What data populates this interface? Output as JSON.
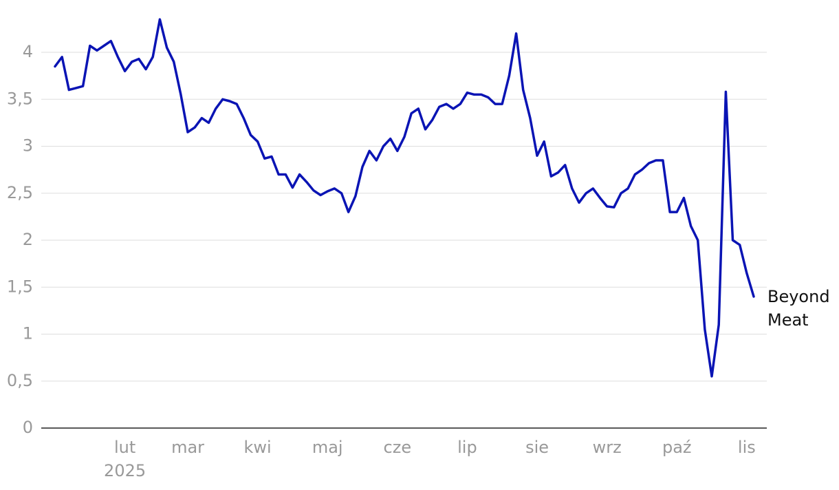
{
  "chart_data": {
    "type": "line",
    "categories": [
      null,
      null,
      null,
      null,
      null,
      null,
      null,
      null,
      null,
      null,
      "lut",
      null,
      null,
      null,
      null,
      null,
      null,
      null,
      null,
      "mar",
      null,
      null,
      null,
      null,
      null,
      null,
      null,
      null,
      null,
      "kwi",
      null,
      null,
      null,
      null,
      null,
      null,
      null,
      null,
      null,
      "maj",
      null,
      null,
      null,
      null,
      null,
      null,
      null,
      null,
      null,
      "cze",
      null,
      null,
      null,
      null,
      null,
      null,
      null,
      null,
      null,
      "lip",
      null,
      null,
      null,
      null,
      null,
      null,
      null,
      null,
      null,
      "sie",
      null,
      null,
      null,
      null,
      null,
      null,
      null,
      null,
      null,
      "wrz",
      null,
      null,
      null,
      null,
      null,
      null,
      null,
      null,
      null,
      "paź",
      null,
      null,
      null,
      null,
      null,
      null,
      null,
      null,
      null,
      "lis",
      null
    ],
    "year_label": "2025",
    "series": [
      {
        "name": "Beyond Meat",
        "color": "#0a14b4",
        "values": [
          3.85,
          3.95,
          3.6,
          3.62,
          3.64,
          4.07,
          4.02,
          4.07,
          4.12,
          3.95,
          3.8,
          3.9,
          3.93,
          3.82,
          3.95,
          4.35,
          4.05,
          3.9,
          3.55,
          3.15,
          3.2,
          3.3,
          3.25,
          3.4,
          3.5,
          3.48,
          3.45,
          3.3,
          3.12,
          3.05,
          2.87,
          2.89,
          2.7,
          2.7,
          2.56,
          2.7,
          2.62,
          2.53,
          2.48,
          2.52,
          2.55,
          2.5,
          2.3,
          2.47,
          2.78,
          2.95,
          2.85,
          3.0,
          3.08,
          2.95,
          3.1,
          3.35,
          3.4,
          3.18,
          3.28,
          3.42,
          3.45,
          3.4,
          3.45,
          3.57,
          3.55,
          3.55,
          3.52,
          3.45,
          3.45,
          3.75,
          4.2,
          3.6,
          3.3,
          2.9,
          3.05,
          2.68,
          2.72,
          2.8,
          2.55,
          2.4,
          2.5,
          2.55,
          2.45,
          2.36,
          2.35,
          2.5,
          2.55,
          2.7,
          2.75,
          2.82,
          2.85,
          2.85,
          2.3,
          2.3,
          2.45,
          2.15,
          2.0,
          1.05,
          0.55,
          1.1,
          3.58,
          2.0,
          1.95,
          1.65,
          1.4
        ]
      }
    ],
    "ylim": [
      0,
      4.45
    ],
    "yticks": [
      0,
      {
        "value": 0.5,
        "label": "0,5"
      },
      1,
      {
        "value": 1.5,
        "label": "1,5"
      },
      2,
      {
        "value": 2.5,
        "label": "2,5"
      },
      3,
      {
        "value": 3.5,
        "label": "3,5"
      },
      4
    ],
    "grid": true
  }
}
